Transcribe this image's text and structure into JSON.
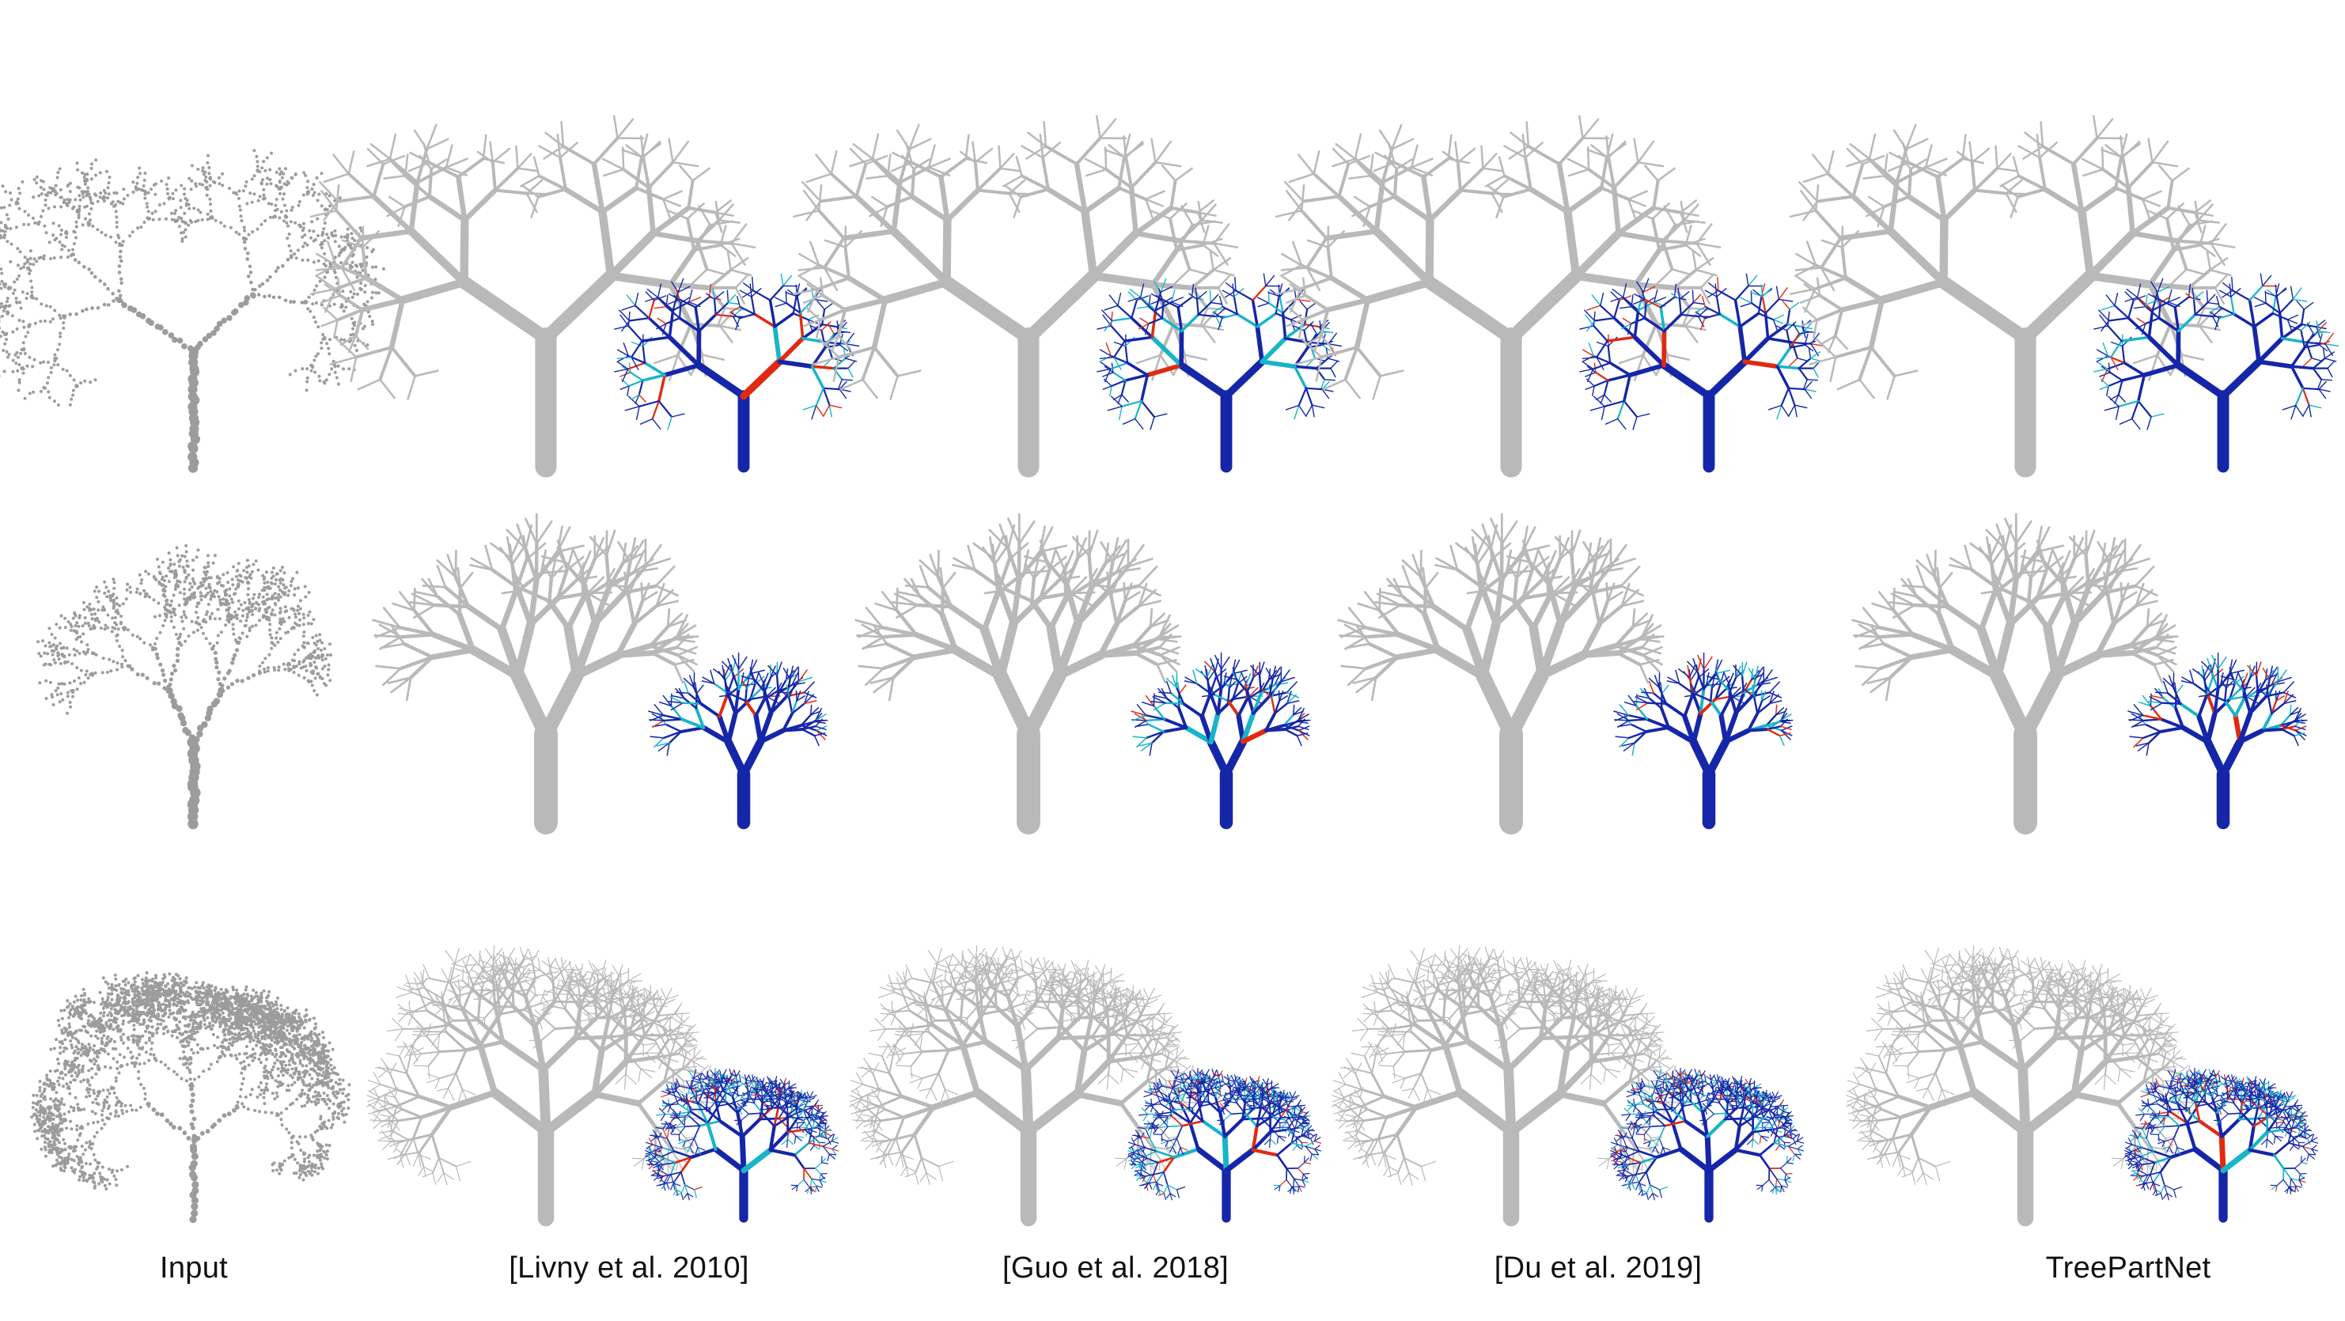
{
  "figure": {
    "columns": [
      {
        "label": "Input",
        "kind": "points"
      },
      {
        "label": "[Livny et al. 2010]",
        "kind": "mesh"
      },
      {
        "label": "[Guo et al. 2018]",
        "kind": "mesh"
      },
      {
        "label": "[Du et al. 2019]",
        "kind": "mesh"
      },
      {
        "label": "TreePartNet",
        "kind": "mesh"
      }
    ],
    "rows": [
      {
        "tree": "tall-sparse"
      },
      {
        "tree": "vase-shaped"
      },
      {
        "tree": "round-crown"
      }
    ],
    "colors": {
      "mesh": "#b9b9b9",
      "points": "#9c9c9c",
      "error_low": "#1526a8",
      "error_mid": "#18b4c8",
      "error_high": "#e02a10"
    }
  }
}
